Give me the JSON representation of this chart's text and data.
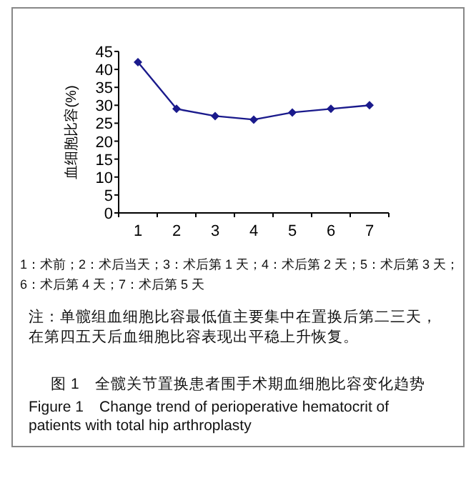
{
  "chart_data": {
    "type": "line",
    "title": "图 1　全髋关节置换患者围手术期血细胞比容变化趋势",
    "subtitle": "Figure 1　Change trend of perioperative hematocrit of patients with total hip arthroplasty",
    "ylabel": "血细胞比容(%)",
    "categories": [
      "1",
      "2",
      "3",
      "4",
      "5",
      "6",
      "7"
    ],
    "series": [
      {
        "color": "#1a1a8c",
        "values": [
          42,
          29,
          27,
          26,
          28,
          29,
          30
        ]
      }
    ],
    "ylim": [
      0,
      45
    ],
    "yticks": [
      0,
      5,
      10,
      15,
      20,
      25,
      30,
      35,
      40,
      45
    ],
    "marker": "diamond",
    "grid": false,
    "annotations": [
      "1：术前；2：术后当天；3：术后第 1 天；4：术后第 2 天；5：术后第 3 天；6：术后第 4 天；7：术后第 5 天",
      "注：单髋组血细胞比容最低值主要集中在置换后第二三天，在第四五天后血细胞比容表现出平稳上升恢复。"
    ]
  }
}
